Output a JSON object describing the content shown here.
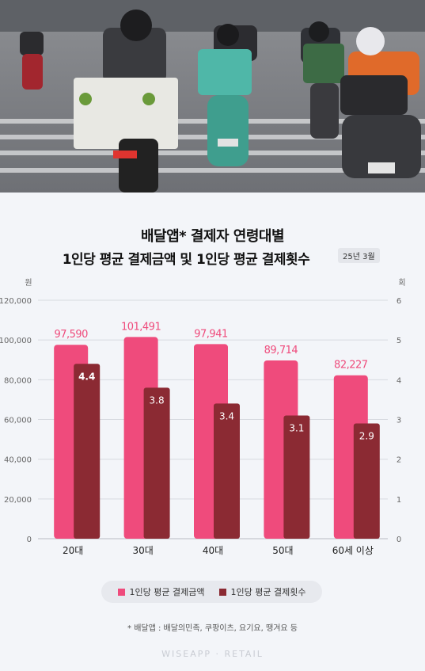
{
  "photo": {
    "description_icon": "street-photo-scooters"
  },
  "header": {
    "title_line1": "배달앱* 결제자 연령대별",
    "title_line2": "1인당 평균 결제금액 및 1인당 평균 결제횟수",
    "date_badge": "25년 3월"
  },
  "chart_data": {
    "type": "bar",
    "categories": [
      "20대",
      "30대",
      "40대",
      "50대",
      "60세 이상"
    ],
    "series": [
      {
        "name": "1인당 평균 결제금액",
        "values": [
          97590,
          101491,
          97941,
          89714,
          82227
        ],
        "axis": "left",
        "color": "#ef4b7c"
      },
      {
        "name": "1인당 평균 결제횟수",
        "values": [
          4.4,
          3.8,
          3.4,
          3.1,
          2.9
        ],
        "axis": "right",
        "color": "#8b2a33"
      }
    ],
    "left_axis": {
      "unit": "원",
      "ylim": [
        0,
        120000
      ],
      "ticks": [
        "0",
        "20,000",
        "40,000",
        "60,000",
        "80,000",
        "100,000",
        "120,000"
      ]
    },
    "right_axis": {
      "unit": "회",
      "ylim": [
        0,
        6
      ],
      "ticks": [
        "0",
        "1",
        "2",
        "3",
        "4",
        "5",
        "6"
      ]
    },
    "amount_labels": [
      "97,590",
      "101,491",
      "97,941",
      "89,714",
      "82,227"
    ],
    "count_labels": [
      "4.4",
      "3.8",
      "3.4",
      "3.1",
      "2.9"
    ],
    "grid": true,
    "legend_placement": "bottom"
  },
  "footnote": "* 배달앱 : 배달의민족, 쿠팡이츠, 요기요, 땡겨요 등",
  "brand": "WISEAPP · RETAIL"
}
